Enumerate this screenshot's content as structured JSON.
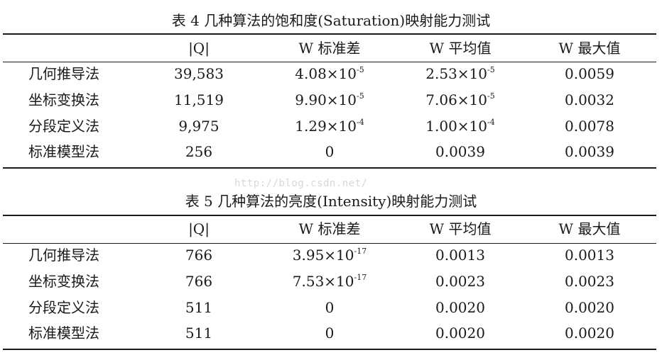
{
  "table4": {
    "caption": "表 4  几种算法的饱和度(Saturation)映射能力测试",
    "headers": [
      "",
      "|Q|",
      "W  标准差",
      "W  平均值",
      "W  最大值"
    ],
    "rows": [
      {
        "method": "几何推导法",
        "q": "39,583",
        "std": {
          "base": "4.08×10",
          "exp": "-5"
        },
        "mean": {
          "base": "2.53×10",
          "exp": "-5"
        },
        "max": "0.0059"
      },
      {
        "method": "坐标变换法",
        "q": "11,519",
        "std": {
          "base": "9.90×10",
          "exp": "-5"
        },
        "mean": {
          "base": "7.06×10",
          "exp": "-5"
        },
        "max": "0.0032"
      },
      {
        "method": "分段定义法",
        "q": "9,975",
        "std": {
          "base": "1.29×10",
          "exp": "-4"
        },
        "mean": {
          "base": "1.00×10",
          "exp": "-4"
        },
        "max": "0.0078"
      },
      {
        "method": "标准模型法",
        "q": "256",
        "std": {
          "base": "0",
          "exp": ""
        },
        "mean": {
          "base": "0.0039",
          "exp": ""
        },
        "max": "0.0039"
      }
    ]
  },
  "table5": {
    "caption": "表 5  几种算法的亮度(Intensity)映射能力测试",
    "headers": [
      "",
      "|Q|",
      "W  标准差",
      "W  平均值",
      "W  最大值"
    ],
    "rows": [
      {
        "method": "几何推导法",
        "q": "766",
        "std": {
          "base": "3.95×10",
          "exp": "-17"
        },
        "mean": {
          "base": "0.0013",
          "exp": ""
        },
        "max": "0.0013"
      },
      {
        "method": "坐标变换法",
        "q": "766",
        "std": {
          "base": "7.53×10",
          "exp": "-17"
        },
        "mean": {
          "base": "0.0023",
          "exp": ""
        },
        "max": "0.0023"
      },
      {
        "method": "分段定义法",
        "q": "511",
        "std": {
          "base": "0",
          "exp": ""
        },
        "mean": {
          "base": "0.0020",
          "exp": ""
        },
        "max": "0.0020"
      },
      {
        "method": "标准模型法",
        "q": "511",
        "std": {
          "base": "0",
          "exp": ""
        },
        "mean": {
          "base": "0.0020",
          "exp": ""
        },
        "max": "0.0020"
      }
    ]
  },
  "watermark": "http://blog.csdn.net/"
}
